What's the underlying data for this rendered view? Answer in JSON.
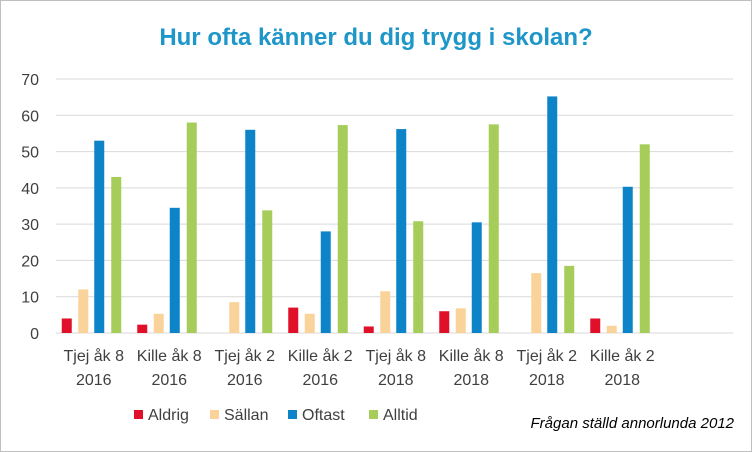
{
  "chart_data": {
    "type": "bar",
    "title": "Hur ofta känner du dig trygg i skolan?",
    "xlabel": "",
    "ylabel": "",
    "ylim": [
      0,
      70
    ],
    "yticks": [
      "0",
      "10",
      "20",
      "30",
      "40",
      "50",
      "60",
      "70"
    ],
    "grid": true,
    "legend_position": "bottom-left",
    "categories": [
      [
        "Tjej åk 8",
        "2016"
      ],
      [
        "Kille åk 8",
        "2016"
      ],
      [
        "Tjej åk 2",
        "2016"
      ],
      [
        "Kille åk 2",
        "2016"
      ],
      [
        "Tjej åk 8",
        "2018"
      ],
      [
        "Kille åk 8",
        "2018"
      ],
      [
        "Tjej åk 2",
        "2018"
      ],
      [
        "Kille åk 2",
        "2018"
      ]
    ],
    "series": [
      {
        "name": "Aldrig",
        "color": "#e0102b",
        "values": [
          4,
          2.3,
          0,
          7,
          1.8,
          6,
          0,
          4
        ]
      },
      {
        "name": "Sällan",
        "color": "#fad39a",
        "values": [
          12,
          5.3,
          8.5,
          5.3,
          11.5,
          6.8,
          16.5,
          2
        ]
      },
      {
        "name": "Oftast",
        "color": "#0d84c8",
        "values": [
          53,
          34.5,
          56,
          28,
          56.2,
          30.5,
          65.2,
          40.3
        ]
      },
      {
        "name": "Alltid",
        "color": "#a6cc5a",
        "values": [
          43,
          58,
          33.8,
          57.3,
          30.8,
          57.5,
          18.5,
          52
        ]
      }
    ],
    "annotation": "Frågan ställd annorlunda 2012"
  }
}
